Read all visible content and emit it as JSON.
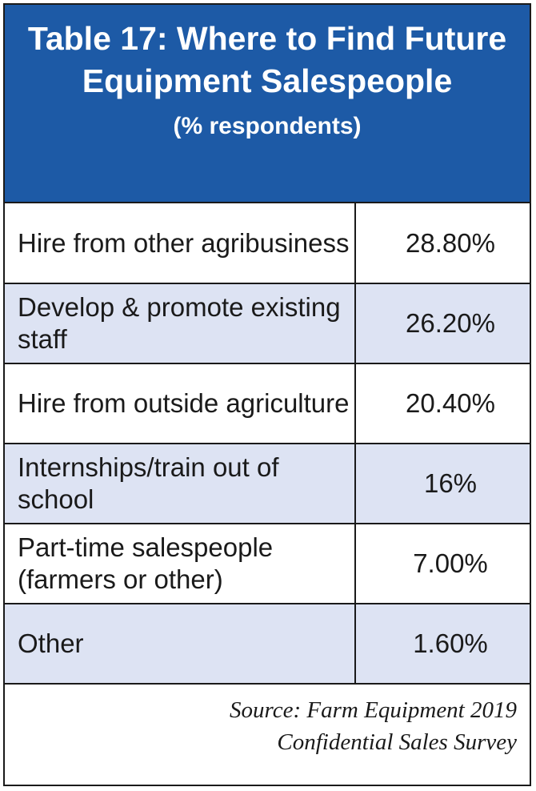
{
  "chart_data": {
    "type": "table",
    "title": "Table 17: Where to Find Future Equipment Salespeople",
    "subtitle": "(% respondents)",
    "rows": [
      {
        "label": "Hire from other agribusiness",
        "value": "28.80%"
      },
      {
        "label": "Develop & promote existing staff",
        "value": "26.20%"
      },
      {
        "label": "Hire from outside agriculture",
        "value": "20.40%"
      },
      {
        "label": "Internships/train out of school",
        "value": "16%"
      },
      {
        "label": "Part-time salespeople (farmers or other)",
        "value": "7.00%"
      },
      {
        "label": "Other",
        "value": "1.60%"
      }
    ],
    "source_line1": "Source: Farm Equipment 2019",
    "source_line2": "Confidential Sales Survey"
  },
  "colors": {
    "header_bg": "#1d5aa6",
    "header_text": "#ffffff",
    "alt_row_bg": "#dde3f3",
    "border": "#1a1a1a"
  }
}
